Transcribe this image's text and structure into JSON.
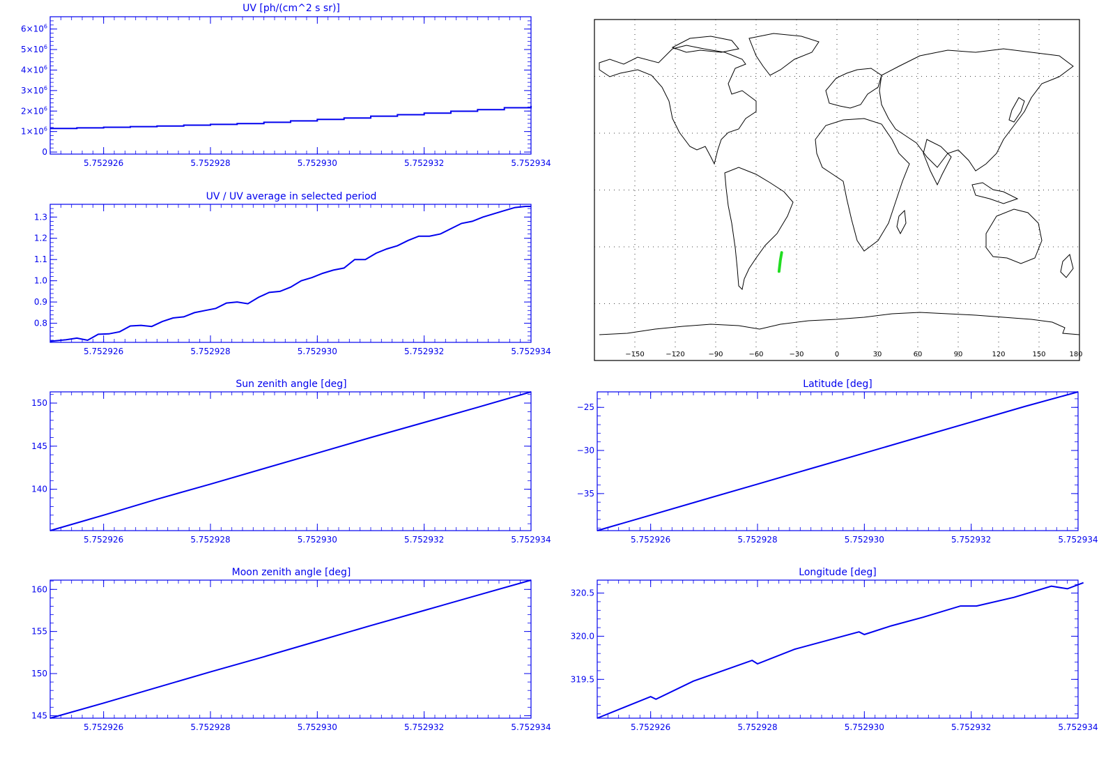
{
  "chart_data": [
    {
      "id": "uv",
      "type": "line",
      "step": true,
      "title": "UV [ph/(cm^2 s sr)]",
      "xlabel": "",
      "ylabel": "",
      "xlim": [
        5.752925,
        5.752934
      ],
      "ylim": [
        -100000,
        6600000
      ],
      "x_ticks": [
        "5.752926",
        "5.752928",
        "5.752930",
        "5.752932",
        "5.752934"
      ],
      "y_ticks": [
        {
          "base": "0",
          "exp": ""
        },
        {
          "base": "1×10",
          "exp": "6"
        },
        {
          "base": "2×10",
          "exp": "6"
        },
        {
          "base": "3×10",
          "exp": "6"
        },
        {
          "base": "4×10",
          "exp": "6"
        },
        {
          "base": "5×10",
          "exp": "6"
        },
        {
          "base": "6×10",
          "exp": "6"
        }
      ],
      "series": [
        {
          "x": [
            5.752925,
            5.7529255,
            5.752926,
            5.7529265,
            5.752927,
            5.7529275,
            5.752928,
            5.7529285,
            5.752929,
            5.7529295,
            5.75293,
            5.7529305,
            5.752931,
            5.7529315,
            5.752932,
            5.7529325,
            5.752933,
            5.7529335,
            5.752934
          ],
          "y": [
            1150000,
            1180000,
            1210000,
            1240000,
            1270000,
            1310000,
            1350000,
            1390000,
            1450000,
            1520000,
            1590000,
            1660000,
            1750000,
            1820000,
            1900000,
            1990000,
            2070000,
            2160000,
            2250000
          ]
        }
      ],
      "color": "#0000ee"
    },
    {
      "id": "uvratio",
      "type": "line",
      "title": "UV / UV average in selected period",
      "xlabel": "",
      "ylabel": "",
      "xlim": [
        5.752925,
        5.752934
      ],
      "ylim": [
        0.71,
        1.36
      ],
      "x_ticks": [
        "5.752926",
        "5.752928",
        "5.752930",
        "5.752932",
        "5.752934"
      ],
      "y_ticks": [
        "0.8",
        "0.9",
        "1.0",
        "1.1",
        "1.2",
        "1.3"
      ],
      "series": [
        {
          "x": [
            5.752925,
            5.7529253,
            5.7529255,
            5.7529257,
            5.7529259,
            5.7529261,
            5.7529263,
            5.7529265,
            5.7529267,
            5.7529269,
            5.7529271,
            5.7529273,
            5.7529275,
            5.7529277,
            5.7529279,
            5.7529281,
            5.7529283,
            5.7529285,
            5.7529287,
            5.7529289,
            5.7529291,
            5.7529293,
            5.7529295,
            5.7529297,
            5.7529299,
            5.7529301,
            5.7529303,
            5.7529305,
            5.7529307,
            5.7529309,
            5.7529311,
            5.7529313,
            5.7529315,
            5.7529317,
            5.7529319,
            5.7529321,
            5.7529323,
            5.7529325,
            5.7529327,
            5.7529329,
            5.7529331,
            5.7529333,
            5.7529335,
            5.7529337,
            5.7529339,
            5.752934
          ],
          "y": [
            0.715,
            0.722,
            0.73,
            0.72,
            0.748,
            0.75,
            0.76,
            0.787,
            0.79,
            0.785,
            0.808,
            0.825,
            0.83,
            0.85,
            0.86,
            0.87,
            0.895,
            0.9,
            0.892,
            0.922,
            0.945,
            0.95,
            0.97,
            1.0,
            1.015,
            1.035,
            1.05,
            1.06,
            1.1,
            1.1,
            1.13,
            1.15,
            1.165,
            1.19,
            1.21,
            1.21,
            1.22,
            1.245,
            1.27,
            1.28,
            1.3,
            1.315,
            1.33,
            1.345,
            1.35,
            1.35
          ]
        }
      ],
      "color": "#0000ee"
    },
    {
      "id": "sunza",
      "type": "line",
      "title": "Sun zenith angle [deg]",
      "xlabel": "",
      "ylabel": "",
      "xlim": [
        5.752925,
        5.752934
      ],
      "ylim": [
        135.2,
        151.3
      ],
      "x_ticks": [
        "5.752926",
        "5.752928",
        "5.752930",
        "5.752932",
        "5.752934"
      ],
      "y_ticks": [
        "140",
        "145",
        "150"
      ],
      "series": [
        {
          "x": [
            5.752925,
            5.752926,
            5.752927,
            5.752928,
            5.752929,
            5.75293,
            5.752931,
            5.752932,
            5.752933,
            5.752934
          ],
          "y": [
            135.2,
            137.0,
            138.85,
            140.6,
            142.4,
            144.2,
            146.0,
            147.75,
            149.5,
            151.3
          ]
        }
      ],
      "color": "#0000ee"
    },
    {
      "id": "lat",
      "type": "line",
      "title": "Latitude [deg]",
      "xlabel": "",
      "ylabel": "",
      "xlim": [
        5.752925,
        5.752934
      ],
      "ylim": [
        -39.3,
        -23.2
      ],
      "x_ticks": [
        "5.752926",
        "5.752928",
        "5.752930",
        "5.752932",
        "5.752934"
      ],
      "y_ticks": [
        "−35",
        "−30",
        "−25"
      ],
      "series": [
        {
          "x": [
            5.752925,
            5.752926,
            5.752927,
            5.752928,
            5.752929,
            5.75293,
            5.752931,
            5.752932,
            5.752933,
            5.752934
          ],
          "y": [
            -39.3,
            -37.5,
            -35.7,
            -33.9,
            -32.1,
            -30.3,
            -28.5,
            -26.7,
            -24.9,
            -23.2
          ]
        }
      ],
      "color": "#0000ee"
    },
    {
      "id": "moonza",
      "type": "line",
      "title": "Moon zenith angle [deg]",
      "xlabel": "",
      "ylabel": "",
      "xlim": [
        5.752925,
        5.752934
      ],
      "ylim": [
        144.7,
        161.1
      ],
      "x_ticks": [
        "5.752926",
        "5.752928",
        "5.752930",
        "5.752932",
        "5.752934"
      ],
      "y_ticks": [
        "145",
        "150",
        "155",
        "160"
      ],
      "series": [
        {
          "x": [
            5.752925,
            5.752926,
            5.752927,
            5.752928,
            5.752929,
            5.75293,
            5.752931,
            5.752932,
            5.752933,
            5.752934
          ],
          "y": [
            144.7,
            146.5,
            148.35,
            150.2,
            152.0,
            153.85,
            155.7,
            157.5,
            159.3,
            161.1
          ]
        }
      ],
      "color": "#0000ee"
    },
    {
      "id": "lon",
      "type": "line",
      "title": "Longitude [deg]",
      "xlabel": "",
      "ylabel": "",
      "xlim": [
        5.752925,
        5.752934
      ],
      "ylim": [
        319.05,
        320.65
      ],
      "x_ticks": [
        "5.752926",
        "5.752928",
        "5.752930",
        "5.752932",
        "5.752934"
      ],
      "y_ticks": [
        "319.5",
        "320.0",
        "320.5"
      ],
      "series": [
        {
          "x": [
            5.752925,
            5.752926,
            5.7529261,
            5.7529268,
            5.7529279,
            5.752928,
            5.7529287,
            5.7529299,
            5.75293,
            5.7529305,
            5.7529311,
            5.7529318,
            5.7529321,
            5.7529328,
            5.7529335,
            5.7529338,
            5.7529341
          ],
          "y": [
            319.05,
            319.3,
            319.27,
            319.48,
            319.72,
            319.68,
            319.85,
            320.05,
            320.02,
            320.12,
            320.22,
            320.35,
            320.35,
            320.45,
            320.58,
            320.55,
            320.62
          ]
        }
      ],
      "color": "#0000ee"
    }
  ],
  "map": {
    "x_ticks": [
      "−150",
      "−120",
      "−90",
      "−60",
      "−30",
      "0",
      "30",
      "60",
      "90",
      "120",
      "150",
      "180"
    ],
    "track_color": "#22dd22",
    "track": [
      [
        -41,
        -33
      ],
      [
        -42,
        -37
      ],
      [
        -43,
        -43
      ]
    ]
  }
}
